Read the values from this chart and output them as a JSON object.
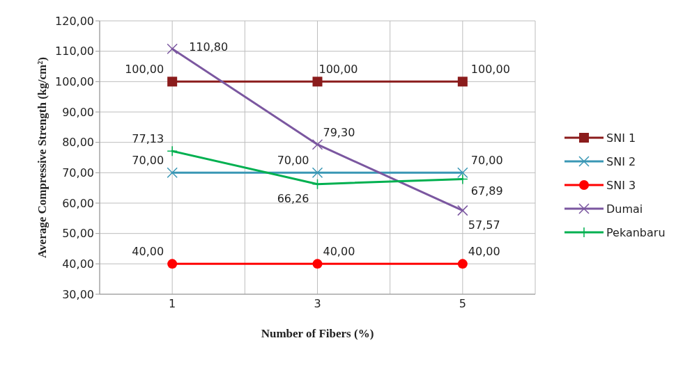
{
  "chart_data": {
    "type": "line",
    "xlabel": "Number of Fibers (%)",
    "ylabel": "Average Compressive Strength (kg/cm²)",
    "x": [
      1,
      3,
      5
    ],
    "xlim": [
      0,
      6
    ],
    "xticks": [
      {
        "value": 0,
        "label": null
      },
      1,
      {
        "value": 2,
        "label": null
      },
      3,
      {
        "value": 4,
        "label": null
      },
      5,
      {
        "value": 6,
        "label": null
      }
    ],
    "ylim": [
      30,
      120
    ],
    "yticks": [
      {
        "value": 30,
        "label": "30,00"
      },
      {
        "value": 40,
        "label": "40,00"
      },
      {
        "value": 50,
        "label": "50,00"
      },
      {
        "value": 60,
        "label": "60,00"
      },
      {
        "value": 70,
        "label": "70,00"
      },
      {
        "value": 80,
        "label": "80,00"
      },
      {
        "value": 90,
        "label": "90,00"
      },
      {
        "value": 100,
        "label": "100,00"
      },
      {
        "value": 110,
        "label": "110,00"
      },
      {
        "value": 120,
        "label": "120,00"
      }
    ],
    "grid": true,
    "legend": "right",
    "line_style": "solid",
    "series": [
      {
        "name": "SNI 1",
        "color": "#8b1c1c",
        "marker": "square",
        "values": [
          100,
          100,
          100
        ],
        "value_labels": [
          "100,00",
          "100,00",
          "100,00"
        ]
      },
      {
        "name": "SNI 2",
        "color": "#3a97b5",
        "marker": "cross",
        "values": [
          70,
          70,
          70
        ],
        "value_labels": [
          "70,00",
          "70,00",
          "70,00"
        ]
      },
      {
        "name": "SNI 3",
        "color": "#ff0000",
        "marker": "circle",
        "values": [
          40,
          40,
          40
        ],
        "value_labels": [
          "40,00",
          "40,00",
          "40,00"
        ]
      },
      {
        "name": "Dumai",
        "color": "#7b57a0",
        "marker": "cross",
        "values": [
          110.8,
          79.3,
          57.57
        ],
        "value_labels": [
          "110,80",
          "79,30",
          "57,57"
        ]
      },
      {
        "name": "Pekanbaru",
        "color": "#00b050",
        "marker": "plus",
        "values": [
          77.13,
          66.26,
          67.89
        ],
        "value_labels": [
          "77,13",
          "66,26",
          "67,89"
        ]
      }
    ]
  }
}
